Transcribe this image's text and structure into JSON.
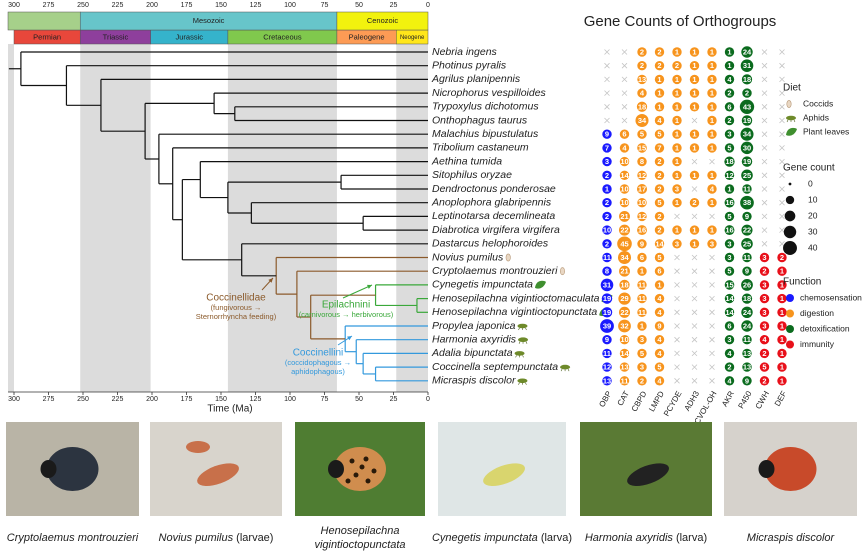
{
  "time_axis": {
    "label": "Time (Ma)",
    "xlim": [
      300,
      0
    ],
    "xticks": [
      300,
      275,
      250,
      225,
      200,
      175,
      150,
      125,
      100,
      75,
      50,
      25,
      0
    ]
  },
  "eras": [
    {
      "name": null,
      "start": 300,
      "end": 252,
      "color": "#a6d08a"
    },
    {
      "name": "Mesozoic",
      "start": 252,
      "end": 66,
      "color": "#67c5ca"
    },
    {
      "name": "Cenozoic",
      "start": 66,
      "end": 0,
      "color": "#f2f20e"
    }
  ],
  "periods": [
    {
      "name": "Permian",
      "start": 300,
      "end": 252,
      "color": "#e8473b",
      "shade": false
    },
    {
      "name": "Triassic",
      "start": 252,
      "end": 201,
      "color": "#8e3f9c",
      "shade": true
    },
    {
      "name": "Jurassic",
      "start": 201,
      "end": 145,
      "color": "#35b3cb",
      "shade": false
    },
    {
      "name": "Cretaceous",
      "start": 145,
      "end": 66,
      "color": "#80c84d",
      "shade": true
    },
    {
      "name": "Paleogene",
      "start": 66,
      "end": 23,
      "color": "#fd9b55",
      "shade": false
    },
    {
      "name": "Neogene",
      "start": 23,
      "end": 0,
      "color": "#ffe61a",
      "shade": true
    }
  ],
  "tree": {
    "age": 295,
    "children": [
      {
        "name": "Nebria ingens"
      },
      {
        "age": 262,
        "children": [
          {
            "name": "Photinus pyralis"
          },
          {
            "age": 237,
            "children": [
              {
                "name": "Agrilus planipennis"
              },
              {
                "age": 205,
                "children": [
                  {
                    "age": 155,
                    "children": [
                      {
                        "name": "Nicrophorus vespilloides"
                      },
                      {
                        "age": 140,
                        "children": [
                          {
                            "name": "Trypoxylus dichotomus"
                          },
                          {
                            "name": "Onthophagus taurus"
                          }
                        ]
                      }
                    ]
                  },
                  {
                    "age": 195,
                    "children": [
                      {
                        "name": "Malachius bipustulatus"
                      },
                      {
                        "age": 185,
                        "children": [
                          {
                            "name": "Tribolium castaneum"
                          },
                          {
                            "age": 178,
                            "children": [
                              {
                                "age": 165,
                                "children": [
                                  {
                                    "name": "Aethina tumida"
                                  },
                                  {
                                    "age": 145,
                                    "children": [
                                      {
                                        "age": 63,
                                        "children": [
                                          {
                                            "name": "Sitophilus oryzae"
                                          },
                                          {
                                            "name": "Dendroctonus ponderosae"
                                          }
                                        ]
                                      },
                                      {
                                        "age": 128,
                                        "children": [
                                          {
                                            "name": "Anoplophora glabripennis"
                                          },
                                          {
                                            "age": 47,
                                            "children": [
                                              {
                                                "name": "Leptinotarsa decemlineata"
                                              },
                                              {
                                                "name": "Diabrotica virgifera virgifera"
                                              }
                                            ]
                                          }
                                        ]
                                      }
                                    ]
                                  }
                                ]
                              },
                              {
                                "age": 135,
                                "children": [
                                  {
                                    "name": "Dastarcus helophoroides"
                                  },
                                  {
                                    "age": 110,
                                    "color": "#8b5a2b",
                                    "children": [
                                      {
                                        "name": "Novius pumilus",
                                        "diet": "Coccids"
                                      },
                                      {
                                        "age": 95,
                                        "children": [
                                          {
                                            "name": "Cryptolaemus montrouzieri",
                                            "diet": "Coccids"
                                          },
                                          {
                                            "age": 85,
                                            "children": [
                                              {
                                                "age": 38,
                                                "color": "#3aa83a",
                                                "children": [
                                                  {
                                                    "name": "Cynegetis impunctata",
                                                    "diet": "Plant leaves"
                                                  },
                                                  {
                                                    "age": 8,
                                                    "children": [
                                                      {
                                                        "name": "Henosepilachna vigintioctomaculata",
                                                        "diet": "Plant leaves"
                                                      },
                                                      {
                                                        "name": "Henosepilachna vigintioctopunctata",
                                                        "diet": "Plant leaves"
                                                      }
                                                    ]
                                                  }
                                                ]
                                              },
                                              {
                                                "age": 60,
                                                "color": "#3399dd",
                                                "children": [
                                                  {
                                                    "name": "Propylea japonica",
                                                    "diet": "Aphids"
                                                  },
                                                  {
                                                    "age": 52,
                                                    "children": [
                                                      {
                                                        "name": "Harmonia axyridis",
                                                        "diet": "Aphids"
                                                      },
                                                      {
                                                        "age": 47,
                                                        "children": [
                                                          {
                                                            "name": "Adalia bipunctata",
                                                            "diet": "Aphids"
                                                          },
                                                          {
                                                            "age": 38,
                                                            "children": [
                                                              {
                                                                "name": "Coccinella septempunctata",
                                                                "diet": "Aphids"
                                                              },
                                                              {
                                                                "name": "Micraspis discolor",
                                                                "diet": "Aphids"
                                                              }
                                                            ]
                                                          }
                                                        ]
                                                      }
                                                    ]
                                                  }
                                                ]
                                              }
                                            ]
                                          }
                                        ]
                                      }
                                    ]
                                  }
                                ]
                              }
                            ]
                          }
                        ]
                      }
                    ]
                  }
                ]
              }
            ]
          }
        ]
      }
    ]
  },
  "clade_labels": [
    {
      "name": "Coccinellidae",
      "note": "(fungivorous →",
      "note2": "Sternorrhyncha feeding)",
      "color": "#8b5a2b"
    },
    {
      "name": "Epilachnini",
      "note": "(carnivorous → herbivorous)",
      "color": "#3aa83a"
    },
    {
      "name": "Coccinellini",
      "note": "(coccidophagous →",
      "note2": "aphidophagous)",
      "color": "#3399dd"
    }
  ],
  "gene_counts": {
    "title": "Gene Counts of Orthogroups",
    "functions": [
      {
        "name": "chemosensation",
        "color": "#1a1aff",
        "columns": [
          "OBP"
        ]
      },
      {
        "name": "digestion",
        "color": "#f7941d",
        "columns": [
          "CAT",
          "CBPD",
          "LMPD",
          "PCYDE",
          "ADH3",
          "PCVOL-OH"
        ]
      },
      {
        "name": "detoxification",
        "color": "#0b6b1e",
        "columns": [
          "AKR",
          "P450"
        ]
      },
      {
        "name": "immunity",
        "color": "#e8101a",
        "columns": [
          "CWH",
          "DEF"
        ]
      }
    ],
    "values": [
      [
        null,
        null,
        2,
        2,
        1,
        1,
        1,
        1,
        24,
        null,
        null
      ],
      [
        null,
        null,
        2,
        2,
        2,
        1,
        1,
        1,
        31,
        null,
        null
      ],
      [
        null,
        null,
        13,
        1,
        1,
        1,
        1,
        4,
        18,
        null,
        null
      ],
      [
        null,
        null,
        4,
        1,
        1,
        1,
        1,
        2,
        2,
        null,
        null
      ],
      [
        null,
        null,
        18,
        1,
        1,
        1,
        1,
        6,
        43,
        null,
        null
      ],
      [
        null,
        null,
        34,
        4,
        1,
        null,
        1,
        2,
        19,
        null,
        null
      ],
      [
        9,
        6,
        5,
        5,
        1,
        1,
        1,
        3,
        34,
        null,
        null
      ],
      [
        7,
        4,
        15,
        7,
        1,
        1,
        1,
        5,
        30,
        null,
        null
      ],
      [
        3,
        10,
        8,
        2,
        1,
        null,
        null,
        18,
        19,
        null,
        null
      ],
      [
        2,
        14,
        12,
        2,
        1,
        1,
        1,
        12,
        25,
        null,
        null
      ],
      [
        1,
        10,
        17,
        2,
        3,
        null,
        4,
        1,
        11,
        null,
        null
      ],
      [
        2,
        10,
        10,
        5,
        1,
        2,
        1,
        16,
        38,
        null,
        null
      ],
      [
        2,
        21,
        12,
        2,
        null,
        null,
        null,
        5,
        9,
        null,
        null
      ],
      [
        10,
        22,
        16,
        2,
        1,
        1,
        1,
        16,
        22,
        null,
        null
      ],
      [
        2,
        45,
        9,
        14,
        3,
        1,
        3,
        3,
        25,
        null,
        null
      ],
      [
        11,
        34,
        6,
        5,
        null,
        null,
        null,
        3,
        11,
        3,
        2
      ],
      [
        8,
        21,
        1,
        6,
        null,
        null,
        null,
        5,
        9,
        2,
        1
      ],
      [
        31,
        18,
        11,
        1,
        null,
        null,
        null,
        15,
        26,
        3,
        1
      ],
      [
        19,
        29,
        11,
        4,
        null,
        null,
        null,
        14,
        18,
        3,
        1
      ],
      [
        19,
        22,
        11,
        4,
        null,
        null,
        null,
        14,
        24,
        3,
        1
      ],
      [
        39,
        32,
        1,
        9,
        null,
        null,
        null,
        6,
        24,
        3,
        1
      ],
      [
        9,
        10,
        3,
        4,
        null,
        null,
        null,
        3,
        11,
        4,
        1
      ],
      [
        11,
        14,
        5,
        4,
        null,
        null,
        null,
        4,
        13,
        2,
        1
      ],
      [
        12,
        13,
        3,
        5,
        null,
        null,
        null,
        2,
        13,
        5,
        1
      ],
      [
        13,
        11,
        2,
        4,
        null,
        null,
        null,
        4,
        9,
        2,
        1
      ]
    ]
  },
  "legend": {
    "diet_title": "Diet",
    "diets": [
      "Coccids",
      "Aphids",
      "Plant leaves"
    ],
    "size_title": "Gene count",
    "sizes": [
      0,
      10,
      20,
      30,
      40
    ],
    "function_title": "Function"
  },
  "photos": [
    {
      "species": "Cryptolaemus montrouzieri",
      "bg": "#b9b4a6",
      "body": "#2c3440"
    },
    {
      "species": "Novius pumilus",
      "note": " (larvae)",
      "bg": "#d8d4cc",
      "body": "#c8704a"
    },
    {
      "species": "Henosepilachna",
      "species2": "vigintioctopunctata",
      "bg": "#4f7d32",
      "body": "#d08d4e"
    },
    {
      "species": "Cynegetis impunctata",
      "note": " (larva)",
      "bg": "#dfe6e6",
      "body": "#d9d56e"
    },
    {
      "species": "Harmonia axyridis",
      "note": " (larva)",
      "bg": "#5a7a34",
      "body": "#222"
    },
    {
      "species": "Micraspis discolor",
      "bg": "#d6d2cc",
      "body": "#c84a2a"
    }
  ]
}
